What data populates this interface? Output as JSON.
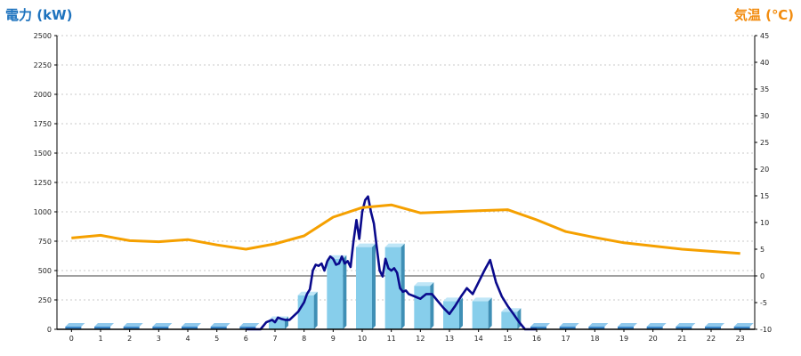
{
  "chart_data": {
    "type": "bar",
    "left_axis_title": "電力 (kW)",
    "right_axis_title": "気温 (℃)",
    "ylim_left": [
      0,
      2500
    ],
    "ylim_right": [
      -10,
      45
    ],
    "left_ticks": [
      0,
      250,
      500,
      750,
      1000,
      1250,
      1500,
      1750,
      2000,
      2250,
      2500
    ],
    "right_ticks": [
      -10,
      -5,
      0,
      5,
      10,
      15,
      20,
      25,
      30,
      35,
      40,
      45
    ],
    "categories": [
      "0",
      "1",
      "2",
      "3",
      "4",
      "5",
      "6",
      "7",
      "8",
      "9",
      "10",
      "11",
      "12",
      "13",
      "14",
      "15",
      "16",
      "17",
      "18",
      "19",
      "20",
      "21",
      "22",
      "23"
    ],
    "grid": "horizontal dotted",
    "colors": {
      "bars": "#87ceeb",
      "power_line": "#0a0a8c",
      "temperature_line": "#f5a000",
      "left_title": "#1e73be",
      "right_title": "#f28c0f"
    },
    "series": [
      {
        "kind": "bar",
        "values": [
          0,
          0,
          0,
          0,
          0,
          0,
          0,
          80,
          290,
          600,
          700,
          700,
          370,
          240,
          240,
          150,
          0,
          0,
          0,
          0,
          0,
          0,
          0,
          0
        ]
      },
      {
        "kind": "line",
        "axis": "left",
        "x": [
          6,
          6.5,
          6.7,
          6.9,
          7.0,
          7.1,
          7.2,
          7.35,
          7.5,
          7.8,
          8.0,
          8.1,
          8.2,
          8.3,
          8.4,
          8.5,
          8.6,
          8.7,
          8.8,
          8.9,
          9.0,
          9.1,
          9.2,
          9.3,
          9.4,
          9.5,
          9.6,
          9.7,
          9.8,
          9.9,
          10.0,
          10.1,
          10.2,
          10.3,
          10.4,
          10.5,
          10.6,
          10.7,
          10.8,
          10.9,
          11.0,
          11.1,
          11.2,
          11.3,
          11.4,
          11.5,
          11.6,
          11.7,
          11.8,
          11.9,
          12.0,
          12.1,
          12.2,
          12.4,
          12.6,
          12.8,
          13.0,
          13.2,
          13.4,
          13.6,
          13.8,
          14.0,
          14.2,
          14.4,
          14.6,
          14.8,
          15.0,
          15.2,
          15.4,
          15.6,
          15.8,
          16.0
        ],
        "values": [
          0,
          0,
          60,
          80,
          60,
          100,
          90,
          80,
          80,
          150,
          230,
          300,
          340,
          500,
          550,
          540,
          560,
          500,
          580,
          620,
          600,
          550,
          560,
          620,
          560,
          580,
          530,
          750,
          930,
          770,
          1000,
          1100,
          1130,
          1000,
          900,
          700,
          500,
          450,
          600,
          520,
          500,
          520,
          480,
          350,
          320,
          330,
          300,
          290,
          280,
          270,
          260,
          280,
          300,
          300,
          240,
          180,
          130,
          200,
          280,
          350,
          300,
          400,
          500,
          590,
          400,
          280,
          200,
          130,
          60,
          0,
          0,
          0
        ]
      },
      {
        "kind": "line",
        "axis": "right",
        "x": [
          0,
          1,
          2,
          3,
          4,
          5,
          6,
          7,
          8,
          9,
          10,
          11,
          12,
          13,
          14,
          15,
          16,
          17,
          18,
          19,
          20,
          21,
          22,
          23
        ],
        "values": [
          7.1,
          7.6,
          6.6,
          6.4,
          6.8,
          5.8,
          5.0,
          6.0,
          7.5,
          11.0,
          12.8,
          13.3,
          11.8,
          12.0,
          12.2,
          12.4,
          10.5,
          8.3,
          7.2,
          6.2,
          5.6,
          5.0,
          4.6,
          4.2
        ]
      }
    ]
  }
}
